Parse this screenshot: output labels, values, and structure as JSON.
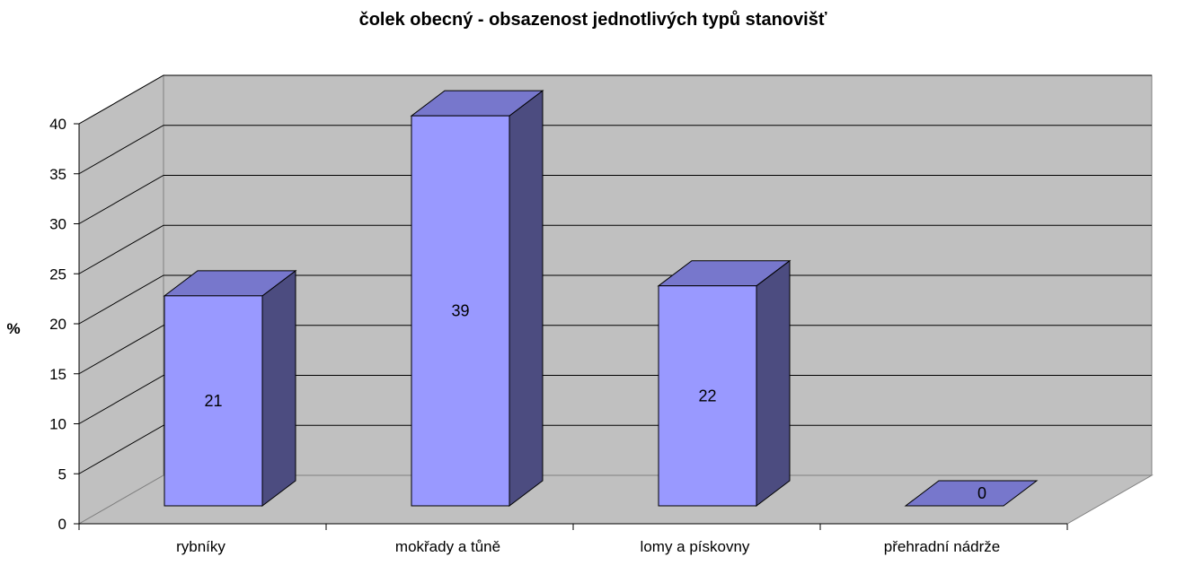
{
  "chart_data": {
    "type": "bar",
    "title": "čolek obecný - obsazenost jednotlivých typů stanovišť",
    "ylabel": "%",
    "xlabel": "",
    "categories": [
      "rybníky",
      "mokřady a tůně",
      "lomy a pískovny",
      "přehradní nádrže"
    ],
    "values": [
      21,
      39,
      22,
      0
    ],
    "ylim": [
      0,
      40
    ],
    "yticks": [
      0,
      5,
      10,
      15,
      20,
      25,
      30,
      35,
      40
    ],
    "grid": true,
    "legend": "none",
    "style": "3d",
    "colors": {
      "bar_front": "#9999ff",
      "bar_top": "#7777cc",
      "bar_side": "#4c4c80",
      "wall": "#c0c0c0",
      "floor": "#c0c0c0"
    }
  }
}
